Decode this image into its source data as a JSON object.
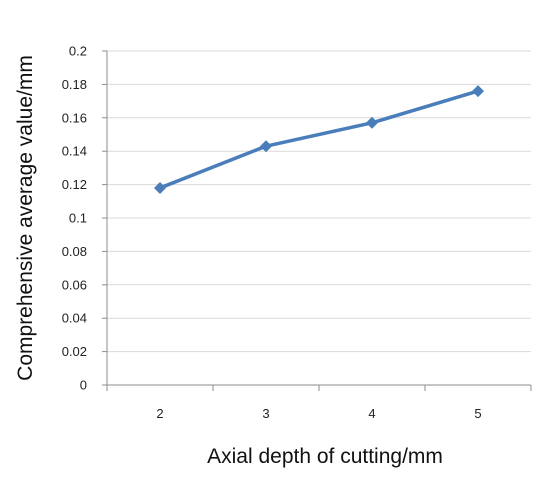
{
  "chart_data": {
    "type": "line",
    "title": "",
    "xlabel": "Axial depth of cutting/mm",
    "ylabel": "Comprehensive average value/mm",
    "categories": [
      "2",
      "3",
      "4",
      "5"
    ],
    "series": [
      {
        "values": [
          0.118,
          0.143,
          0.157,
          0.176
        ],
        "color": "#4a7ebb",
        "marker": "diamond"
      }
    ],
    "y_ticks": [
      "0",
      "0.02",
      "0.04",
      "0.06",
      "0.08",
      "0.1",
      "0.12",
      "0.14",
      "0.16",
      "0.18",
      "0.2"
    ],
    "ylim": [
      0,
      0.2
    ],
    "grid": true,
    "legend": "none"
  }
}
